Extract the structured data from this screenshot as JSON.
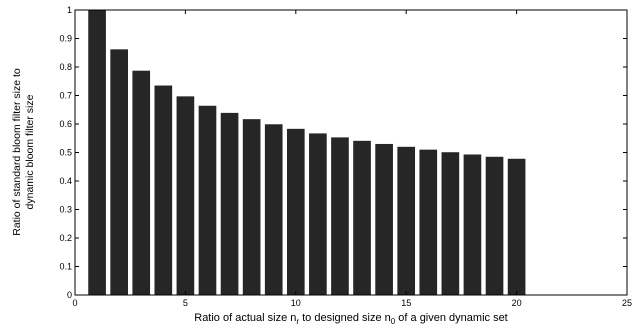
{
  "chart_data": {
    "type": "bar",
    "x": [
      1,
      2,
      3,
      4,
      5,
      6,
      7,
      8,
      9,
      10,
      11,
      12,
      13,
      14,
      15,
      16,
      17,
      18,
      19,
      20
    ],
    "values": [
      1.0,
      0.862,
      0.787,
      0.735,
      0.697,
      0.664,
      0.639,
      0.617,
      0.599,
      0.583,
      0.567,
      0.553,
      0.541,
      0.53,
      0.52,
      0.51,
      0.501,
      0.493,
      0.485,
      0.478
    ],
    "xlim": [
      0,
      25
    ],
    "ylim": [
      0,
      1
    ],
    "xticks": [
      "0",
      "5",
      "10",
      "15",
      "20",
      "25"
    ],
    "yticks": [
      "0",
      "0.1",
      "0.2",
      "0.3",
      "0.4",
      "0.5",
      "0.6",
      "0.7",
      "0.8",
      "0.9",
      "1"
    ],
    "xlabel": {
      "part1": "Ratio of actual size n",
      "sub1": "r",
      "part2": " to designed size n",
      "sub2": "0",
      "part3": " of a given dynamic set"
    },
    "ylabel": [
      "Ratio of standard bloom filter size to",
      "dynamic bloom filter size"
    ],
    "bar_color": "#262626",
    "grid": false
  }
}
